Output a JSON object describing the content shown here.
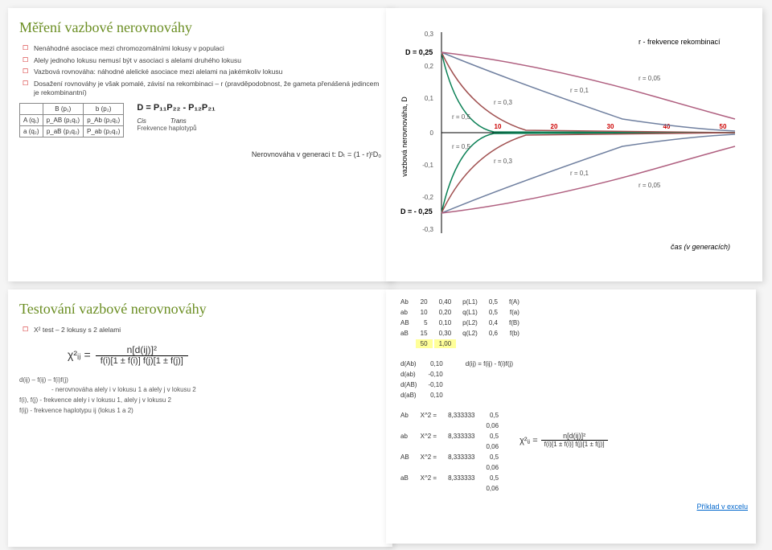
{
  "slide1": {
    "title": "Měření vazbové nerovnováhy",
    "bullets": [
      "Nenáhodné asociace mezi chromozomálními lokusy v populaci",
      "Alely jednoho lokusu nemusí být v asociaci s alelami druhého lokusu",
      "Vazbová rovnováha: náhodné alelické asociace mezi alelami na jakémkoliv lokusu",
      "Dosažení rovnováhy je však pomalé, závisí na rekombinaci – r (pravděpodobnost, že gameta přenášená jedincem je rekombinantní)"
    ],
    "table_header": [
      "",
      "B (p₁)",
      "b (p₂)"
    ],
    "table_rows": [
      [
        "A (q₁)",
        "p_AB (p₁q₁)",
        "p_Ab (p₂q₁)"
      ],
      [
        "a (q₂)",
        "p_aB (p₁q₂)",
        "P_ab (p₂q₂)"
      ]
    ],
    "formula_D": "D = P₁₁P₂₂ - P₁₂P₂₁",
    "cis_trans": [
      "Cis",
      "Trans"
    ],
    "freq_label": "Frekvence haplotypů",
    "generation_formula": "Nerovnováha v generaci t: Dₜ = (1 - r)ᵗD₀"
  },
  "slide2": {
    "y_label": "vazbová nerovnováha, D",
    "x_label": "čas (v generacích)",
    "legend": "r - frekvence rekombinací",
    "D_top": "D = 0,25",
    "D_bottom": "D = - 0,25",
    "y_ticks": [
      "0,3",
      "0,2",
      "0,1",
      "0",
      "-0,1",
      "-0,2",
      "-0,3"
    ],
    "x_ticks": [
      "10",
      "20",
      "30",
      "40",
      "50"
    ],
    "r_labels": [
      "r = 0,5",
      "r = 0,3",
      "r = 0,1",
      "r = 0,05"
    ],
    "colors": {
      "axis": "#000",
      "grid": "#ccc",
      "curve1": "#0a8",
      "curve2": "#a44",
      "curve3": "#88a",
      "curve4": "#c08"
    }
  },
  "slide3": {
    "title": "Testování vazbové nerovnováhy",
    "bullets": [
      "X² test – 2 lokusy s 2 alelami"
    ],
    "chi_formula_lhs": "χ²ᵢⱼ =",
    "chi_formula_num": "n[d(ij)]²",
    "chi_formula_den": "f(i)[1 ± f(i)] f(j)[1 ± f(j)]",
    "defs": [
      "d(ij) – f(ij) – f(i)f(j)",
      " - nerovnováha alely i v lokusu 1 a alely j v lokusu 2",
      "f(i), f(j) - frekvence alely i v lokusu 1, alely j v lokusu 2",
      "f(ij)    - frekvence haplotypu ij (lokus 1 a 2)"
    ]
  },
  "slide4": {
    "table1": {
      "rows": [
        [
          "Ab",
          "20",
          "0,40",
          "p(L1)",
          "0,5",
          "f(A)"
        ],
        [
          "ab",
          "10",
          "0,20",
          "q(L1)",
          "0,5",
          "f(a)"
        ],
        [
          "AB",
          "5",
          "0,10",
          "p(L2)",
          "0,4",
          "f(B)"
        ],
        [
          "aB",
          "15",
          "0,30",
          "q(L2)",
          "0,6",
          "f(b)"
        ],
        [
          "",
          "50",
          "1,00",
          "",
          "",
          ""
        ]
      ]
    },
    "table2": {
      "rows": [
        [
          "d(Ab)",
          "0,10",
          "",
          "d(ij) = f(ij) - f(i)f(j)"
        ],
        [
          "d(ab)",
          "-0,10",
          "",
          ""
        ],
        [
          "d(AB)",
          "-0,10",
          "",
          ""
        ],
        [
          "d(aB)",
          "0,10",
          "",
          ""
        ]
      ]
    },
    "table3": {
      "rows": [
        [
          "Ab",
          "X^2 =",
          "8,333333",
          "0,5"
        ],
        [
          "",
          "",
          "",
          "0,06"
        ],
        [
          "ab",
          "X^2 =",
          "8,333333",
          "0,5"
        ],
        [
          "",
          "",
          "",
          "0,06"
        ],
        [
          "AB",
          "X^2 =",
          "8,333333",
          "0,5"
        ],
        [
          "",
          "",
          "",
          "0,06"
        ],
        [
          "aB",
          "X^2 =",
          "8,333333",
          "0,5"
        ],
        [
          "",
          "",
          "",
          "0,06"
        ]
      ]
    },
    "chi_formula_lhs": "χ²ᵢⱼ =",
    "chi_formula_num": "n[d(ij)]²",
    "chi_formula_den": "f(i)[1 ± f(i)] f(j)[1 ± f(j)]",
    "link": "Příklad v excelu",
    "yellow_cells": [
      [
        4,
        1
      ],
      [
        4,
        2
      ]
    ]
  }
}
